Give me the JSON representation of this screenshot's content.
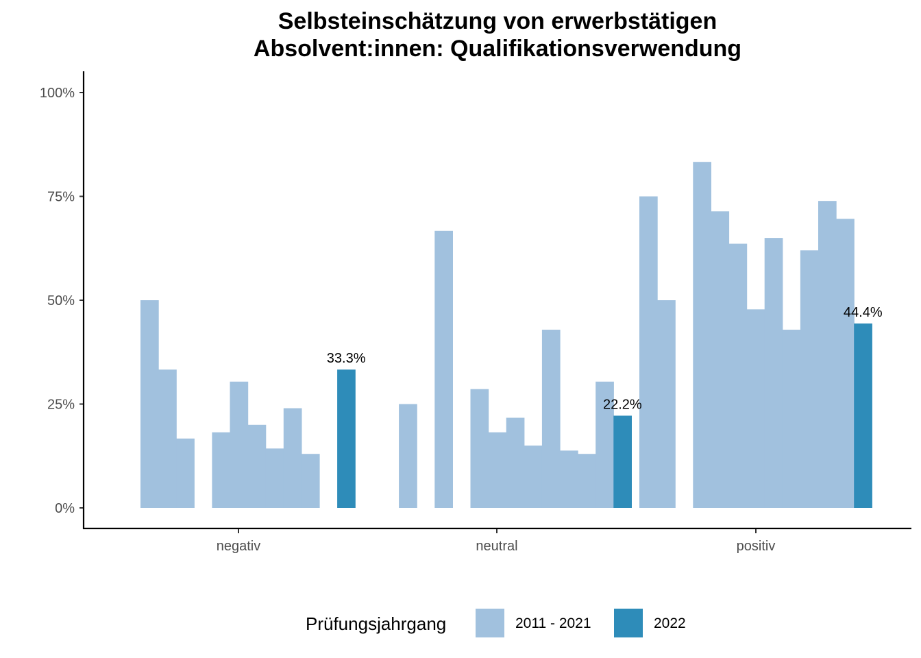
{
  "chart_data": {
    "type": "bar",
    "title": [
      "Selbsteinschätzung von erwerbstätigen",
      "Absolvent:innen: Qualifikationsverwendung"
    ],
    "xlabel": "",
    "ylabel": "",
    "ylim": [
      0,
      1
    ],
    "y_ticks": [
      {
        "value": 0,
        "label": "0%"
      },
      {
        "value": 0.25,
        "label": "25%"
      },
      {
        "value": 0.5,
        "label": "50%"
      },
      {
        "value": 0.75,
        "label": "75%"
      },
      {
        "value": 1.0,
        "label": "100%"
      }
    ],
    "categories": [
      "negativ",
      "neutral",
      "positiv"
    ],
    "slots_per_category": 12,
    "series": [
      {
        "name": "2011 - 2021",
        "color": "#a1c1de",
        "bars": [
          {
            "category": "negativ",
            "slot": 0,
            "value": 0.5
          },
          {
            "category": "negativ",
            "slot": 1,
            "value": 0.333
          },
          {
            "category": "negativ",
            "slot": 2,
            "value": 0.167
          },
          {
            "category": "negativ",
            "slot": 4,
            "value": 0.182
          },
          {
            "category": "negativ",
            "slot": 5,
            "value": 0.304
          },
          {
            "category": "negativ",
            "slot": 6,
            "value": 0.2
          },
          {
            "category": "negativ",
            "slot": 7,
            "value": 0.143
          },
          {
            "category": "negativ",
            "slot": 8,
            "value": 0.24
          },
          {
            "category": "negativ",
            "slot": 9,
            "value": 0.13
          },
          {
            "category": "neutral",
            "slot": 1,
            "value": 0.25
          },
          {
            "category": "neutral",
            "slot": 3,
            "value": 0.667
          },
          {
            "category": "neutral",
            "slot": 5,
            "value": 0.286
          },
          {
            "category": "neutral",
            "slot": 6,
            "value": 0.182
          },
          {
            "category": "neutral",
            "slot": 7,
            "value": 0.217
          },
          {
            "category": "neutral",
            "slot": 8,
            "value": 0.15
          },
          {
            "category": "neutral",
            "slot": 9,
            "value": 0.429
          },
          {
            "category": "neutral",
            "slot": 10,
            "value": 0.138
          },
          {
            "category": "neutral",
            "slot": 11,
            "value": 0.13
          },
          {
            "category": "neutral",
            "slot": 12,
            "value": 0.304
          },
          {
            "category": "positiv",
            "slot": 0,
            "value": 0.75
          },
          {
            "category": "positiv",
            "slot": 1,
            "value": 0.5
          },
          {
            "category": "positiv",
            "slot": 3,
            "value": 0.833
          },
          {
            "category": "positiv",
            "slot": 4,
            "value": 0.714
          },
          {
            "category": "positiv",
            "slot": 5,
            "value": 0.636
          },
          {
            "category": "positiv",
            "slot": 6,
            "value": 0.478
          },
          {
            "category": "positiv",
            "slot": 7,
            "value": 0.65
          },
          {
            "category": "positiv",
            "slot": 8,
            "value": 0.429
          },
          {
            "category": "positiv",
            "slot": 9,
            "value": 0.62
          },
          {
            "category": "positiv",
            "slot": 10,
            "value": 0.739
          },
          {
            "category": "positiv",
            "slot": 11,
            "value": 0.696
          }
        ]
      },
      {
        "name": "2022",
        "color": "#2e8cb9",
        "bars": [
          {
            "category": "negativ",
            "slot": 11,
            "value": 0.333,
            "label": "33.3%"
          },
          {
            "category": "neutral",
            "slot": 13,
            "value": 0.222,
            "label": "22.2%"
          },
          {
            "category": "positiv",
            "slot": 12,
            "value": 0.444,
            "label": "44.4%"
          }
        ]
      }
    ],
    "legend": {
      "title": "Prüfungsjahrgang",
      "entries": [
        {
          "label": "2011 - 2021",
          "color": "#a1c1de"
        },
        {
          "label": "2022",
          "color": "#2e8cb9"
        }
      ],
      "position": "bottom"
    }
  }
}
